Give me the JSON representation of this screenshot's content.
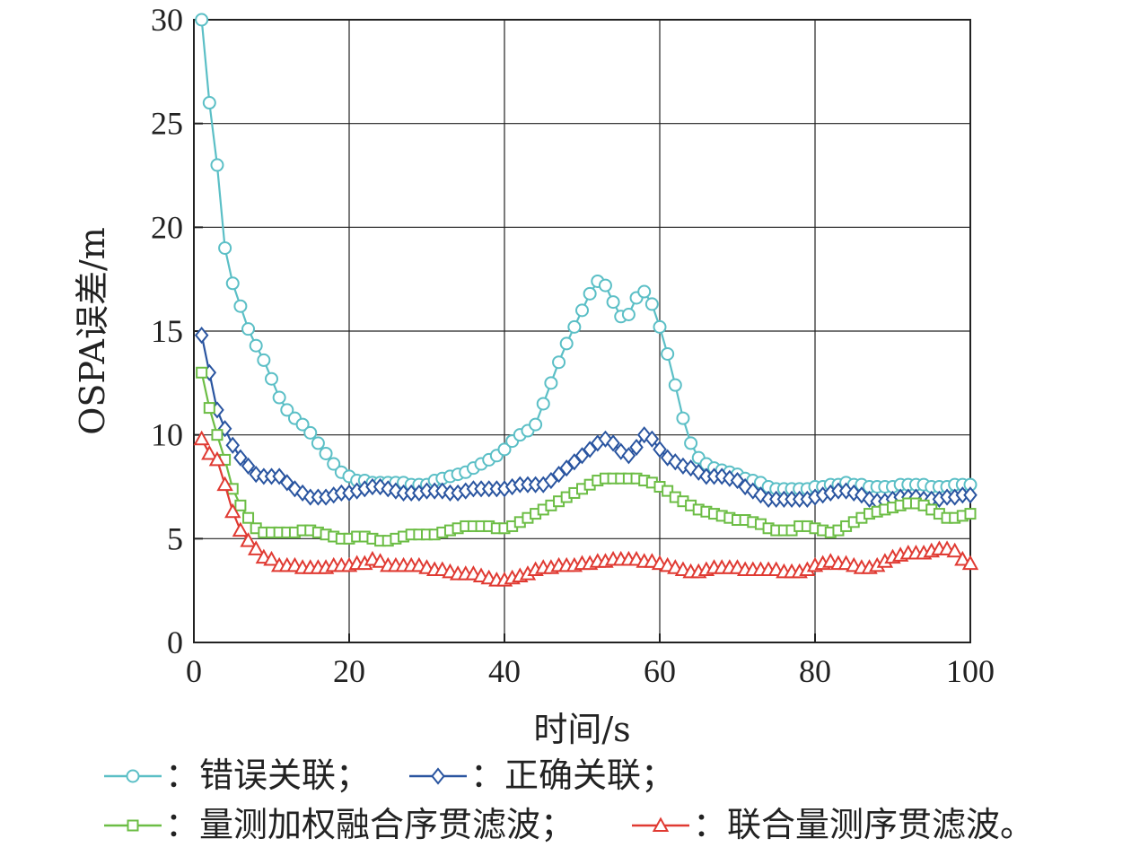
{
  "chart_data": {
    "type": "line",
    "title": "",
    "xlabel": "时间/s",
    "ylabel": "OSPA误差/m",
    "xlim": [
      0,
      100
    ],
    "ylim": [
      0,
      30
    ],
    "xticks": [
      "0",
      "20",
      "40",
      "60",
      "80",
      "100"
    ],
    "yticks": [
      "0",
      "5",
      "10",
      "15",
      "20",
      "25",
      "30"
    ],
    "grid": true,
    "legend_position": "bottom",
    "x": [
      1,
      2,
      3,
      4,
      5,
      6,
      7,
      8,
      9,
      10,
      11,
      12,
      13,
      14,
      15,
      16,
      17,
      18,
      19,
      20,
      21,
      22,
      23,
      24,
      25,
      26,
      27,
      28,
      29,
      30,
      31,
      32,
      33,
      34,
      35,
      36,
      37,
      38,
      39,
      40,
      41,
      42,
      43,
      44,
      45,
      46,
      47,
      48,
      49,
      50,
      51,
      52,
      53,
      54,
      55,
      56,
      57,
      58,
      59,
      60,
      61,
      62,
      63,
      64,
      65,
      66,
      67,
      68,
      69,
      70,
      71,
      72,
      73,
      74,
      75,
      76,
      77,
      78,
      79,
      80,
      81,
      82,
      83,
      84,
      85,
      86,
      87,
      88,
      89,
      90,
      91,
      92,
      93,
      94,
      95,
      96,
      97,
      98,
      99,
      100
    ],
    "series": [
      {
        "name": "：错误关联；",
        "color": "#5bbfc6",
        "marker": "circle",
        "values": [
          30.0,
          26.0,
          23.0,
          19.0,
          17.3,
          16.2,
          15.1,
          14.3,
          13.6,
          12.7,
          11.8,
          11.2,
          10.8,
          10.5,
          10.1,
          9.6,
          9.1,
          8.6,
          8.2,
          8.0,
          7.8,
          7.8,
          7.7,
          7.7,
          7.7,
          7.7,
          7.7,
          7.6,
          7.6,
          7.6,
          7.8,
          7.9,
          8.0,
          8.1,
          8.2,
          8.4,
          8.6,
          8.8,
          9.0,
          9.3,
          9.7,
          10.0,
          10.2,
          10.5,
          11.5,
          12.5,
          13.5,
          14.4,
          15.2,
          16.0,
          16.8,
          17.4,
          17.2,
          16.4,
          15.7,
          15.8,
          16.6,
          16.9,
          16.3,
          15.2,
          13.9,
          12.4,
          10.8,
          9.6,
          8.9,
          8.6,
          8.4,
          8.3,
          8.2,
          8.1,
          7.9,
          7.8,
          7.7,
          7.5,
          7.4,
          7.4,
          7.4,
          7.4,
          7.4,
          7.5,
          7.5,
          7.6,
          7.6,
          7.7,
          7.6,
          7.6,
          7.5,
          7.5,
          7.5,
          7.5,
          7.6,
          7.6,
          7.6,
          7.6,
          7.5,
          7.5,
          7.5,
          7.6,
          7.6,
          7.6
        ]
      },
      {
        "name": "：正确关联；",
        "color": "#2a55a0",
        "marker": "diamond",
        "values": [
          14.8,
          13.0,
          11.2,
          10.3,
          9.5,
          8.9,
          8.5,
          8.1,
          8.0,
          8.0,
          8.0,
          7.7,
          7.4,
          7.2,
          7.0,
          7.0,
          7.0,
          7.1,
          7.2,
          7.2,
          7.3,
          7.4,
          7.5,
          7.5,
          7.4,
          7.3,
          7.2,
          7.2,
          7.2,
          7.3,
          7.3,
          7.3,
          7.2,
          7.2,
          7.3,
          7.4,
          7.4,
          7.4,
          7.4,
          7.4,
          7.5,
          7.6,
          7.6,
          7.6,
          7.6,
          7.8,
          8.1,
          8.4,
          8.7,
          9.0,
          9.3,
          9.6,
          9.8,
          9.6,
          9.2,
          9.0,
          9.4,
          10.0,
          9.8,
          9.3,
          8.9,
          8.7,
          8.5,
          8.4,
          8.2,
          8.0,
          8.0,
          8.0,
          7.9,
          7.8,
          7.5,
          7.3,
          7.1,
          6.9,
          6.9,
          6.9,
          6.9,
          6.9,
          6.9,
          7.0,
          7.1,
          7.2,
          7.3,
          7.3,
          7.2,
          7.1,
          6.9,
          6.8,
          6.8,
          6.9,
          7.0,
          7.0,
          7.0,
          6.9,
          6.9,
          6.9,
          7.0,
          7.0,
          7.1,
          7.1
        ]
      },
      {
        "name": "：量测加权融合序贯滤波；",
        "color": "#6cbd45",
        "marker": "square",
        "values": [
          13.0,
          11.3,
          10.0,
          8.8,
          7.4,
          6.6,
          6.0,
          5.5,
          5.3,
          5.3,
          5.3,
          5.3,
          5.3,
          5.4,
          5.4,
          5.3,
          5.2,
          5.1,
          5.0,
          5.0,
          5.1,
          5.1,
          5.0,
          4.9,
          4.9,
          5.0,
          5.1,
          5.2,
          5.2,
          5.2,
          5.2,
          5.3,
          5.4,
          5.5,
          5.6,
          5.6,
          5.6,
          5.6,
          5.5,
          5.5,
          5.6,
          5.8,
          6.0,
          6.2,
          6.4,
          6.6,
          6.8,
          7.0,
          7.2,
          7.4,
          7.6,
          7.8,
          7.9,
          7.9,
          7.9,
          7.9,
          7.9,
          7.8,
          7.7,
          7.5,
          7.3,
          7.0,
          6.8,
          6.6,
          6.4,
          6.3,
          6.2,
          6.1,
          6.0,
          5.9,
          5.9,
          5.8,
          5.7,
          5.5,
          5.4,
          5.4,
          5.4,
          5.6,
          5.6,
          5.5,
          5.4,
          5.3,
          5.4,
          5.6,
          5.8,
          6.0,
          6.2,
          6.3,
          6.4,
          6.5,
          6.6,
          6.7,
          6.7,
          6.6,
          6.4,
          6.2,
          6.0,
          6.0,
          6.1,
          6.2
        ]
      },
      {
        "name": "：联合量测序贯滤波。",
        "color": "#e03a32",
        "marker": "triangle",
        "values": [
          9.8,
          9.1,
          8.8,
          7.6,
          6.3,
          5.4,
          4.9,
          4.5,
          4.1,
          4.0,
          3.7,
          3.7,
          3.7,
          3.6,
          3.6,
          3.6,
          3.6,
          3.7,
          3.7,
          3.7,
          3.8,
          3.8,
          4.0,
          3.9,
          3.7,
          3.7,
          3.7,
          3.7,
          3.7,
          3.6,
          3.5,
          3.5,
          3.4,
          3.3,
          3.3,
          3.3,
          3.2,
          3.1,
          3.0,
          3.0,
          3.1,
          3.2,
          3.3,
          3.5,
          3.6,
          3.6,
          3.7,
          3.7,
          3.7,
          3.8,
          3.8,
          3.9,
          3.9,
          4.0,
          4.0,
          4.0,
          4.0,
          3.9,
          3.9,
          3.8,
          3.7,
          3.6,
          3.5,
          3.4,
          3.4,
          3.5,
          3.6,
          3.6,
          3.6,
          3.6,
          3.5,
          3.5,
          3.5,
          3.5,
          3.5,
          3.4,
          3.4,
          3.4,
          3.5,
          3.7,
          3.8,
          3.9,
          3.8,
          3.8,
          3.7,
          3.6,
          3.6,
          3.7,
          3.9,
          4.1,
          4.2,
          4.3,
          4.3,
          4.3,
          4.4,
          4.5,
          4.5,
          4.4,
          4.0,
          3.8
        ]
      }
    ]
  }
}
